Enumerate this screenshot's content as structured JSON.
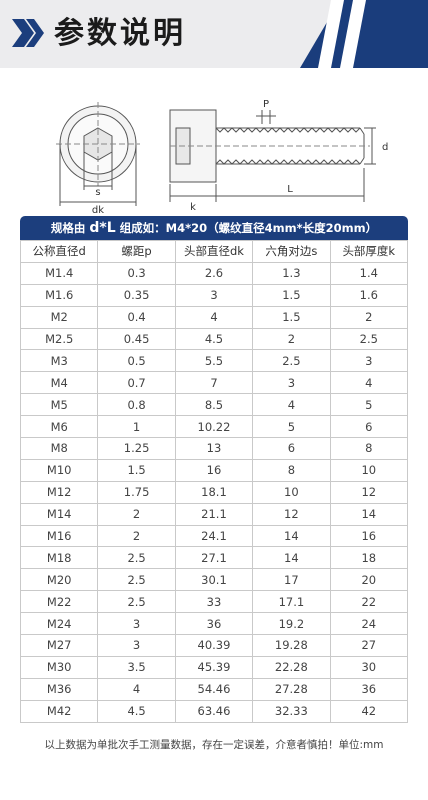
{
  "header": {
    "title": "参数说明",
    "accent_color": "#1a3d7c"
  },
  "drawing": {
    "front_labels": {
      "s": "s",
      "dk": "dk"
    },
    "side_labels": {
      "p": "P",
      "d": "d",
      "k": "k",
      "l": "L"
    }
  },
  "spec_bar": {
    "prefix": "规格由",
    "formula": "d*L",
    "example": "组成如：M4*20（螺纹直径4mm*长度20mm）"
  },
  "table": {
    "columns": [
      "公称直径d",
      "螺距p",
      "头部直径dk",
      "六角对边s",
      "头部厚度k"
    ],
    "rows": [
      [
        "M1.4",
        "0.3",
        "2.6",
        "1.3",
        "1.4"
      ],
      [
        "M1.6",
        "0.35",
        "3",
        "1.5",
        "1.6"
      ],
      [
        "M2",
        "0.4",
        "4",
        "1.5",
        "2"
      ],
      [
        "M2.5",
        "0.45",
        "4.5",
        "2",
        "2.5"
      ],
      [
        "M3",
        "0.5",
        "5.5",
        "2.5",
        "3"
      ],
      [
        "M4",
        "0.7",
        "7",
        "3",
        "4"
      ],
      [
        "M5",
        "0.8",
        "8.5",
        "4",
        "5"
      ],
      [
        "M6",
        "1",
        "10.22",
        "5",
        "6"
      ],
      [
        "M8",
        "1.25",
        "13",
        "6",
        "8"
      ],
      [
        "M10",
        "1.5",
        "16",
        "8",
        "10"
      ],
      [
        "M12",
        "1.75",
        "18.1",
        "10",
        "12"
      ],
      [
        "M14",
        "2",
        "21.1",
        "12",
        "14"
      ],
      [
        "M16",
        "2",
        "24.1",
        "14",
        "16"
      ],
      [
        "M18",
        "2.5",
        "27.1",
        "14",
        "18"
      ],
      [
        "M20",
        "2.5",
        "30.1",
        "17",
        "20"
      ],
      [
        "M22",
        "2.5",
        "33",
        "17.1",
        "22"
      ],
      [
        "M24",
        "3",
        "36",
        "19.2",
        "24"
      ],
      [
        "M27",
        "3",
        "40.39",
        "19.28",
        "27"
      ],
      [
        "M30",
        "3.5",
        "45.39",
        "22.28",
        "30"
      ],
      [
        "M36",
        "4",
        "54.46",
        "27.28",
        "36"
      ],
      [
        "M42",
        "4.5",
        "63.46",
        "32.33",
        "42"
      ]
    ]
  },
  "footnote": "以上数据为单批次手工测量数据，存在一定误差，介意者慎拍！单位:mm"
}
